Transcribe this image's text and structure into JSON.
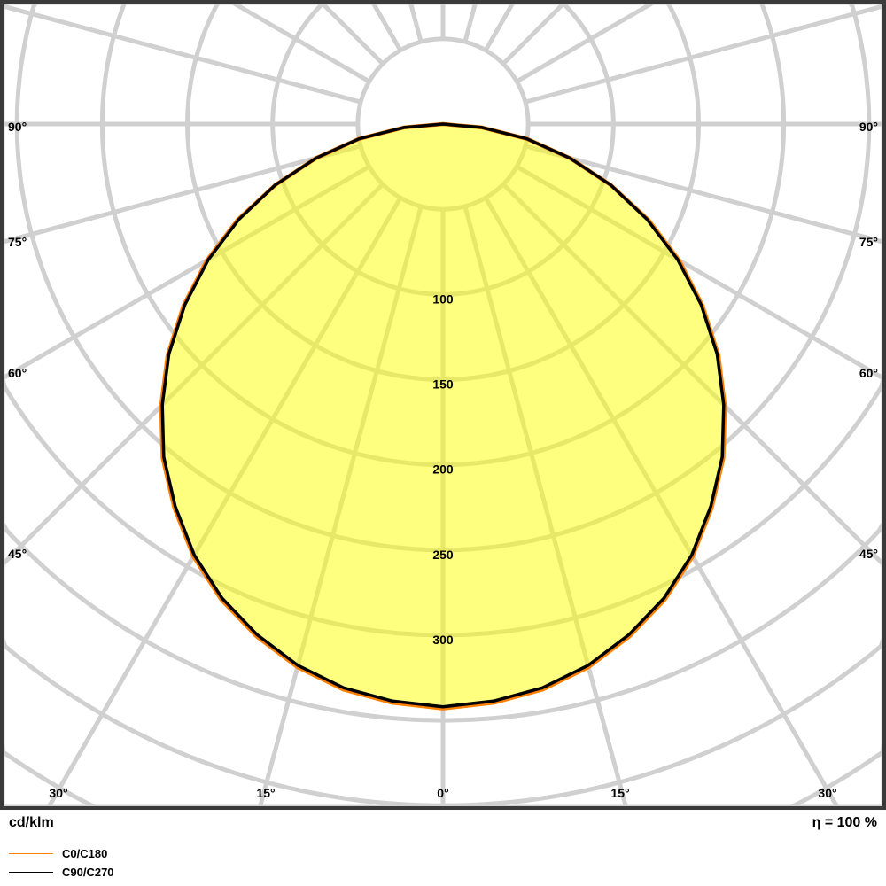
{
  "chart_data": {
    "type": "polar",
    "unit_label": "cd/klm",
    "efficiency_label": "η = 100 %",
    "radial_ticks": [
      100,
      150,
      200,
      250,
      300
    ],
    "radial_grid_step": 50,
    "angle_ticks": {
      "left": [
        "90°",
        "75°",
        "60°",
        "45°"
      ],
      "right": [
        "90°",
        "75°",
        "60°",
        "45°"
      ],
      "bottom": [
        "30°",
        "15°",
        "0°",
        "15°",
        "30°"
      ]
    },
    "angle_grid_step_deg": 15,
    "angles_deg": [
      0,
      5,
      10,
      15,
      20,
      25,
      30,
      35,
      40,
      45,
      50,
      55,
      60,
      65,
      70,
      75,
      80,
      85,
      90
    ],
    "series": [
      {
        "name": "C0/C180",
        "color": "#ff8000",
        "values": [
          343,
          341,
          337,
          330,
          320,
          308,
          293,
          275,
          256,
          234,
          211,
          186,
          160,
          133,
          105,
          77,
          50,
          23,
          0
        ]
      },
      {
        "name": "C90/C270",
        "color": "#000000",
        "values": [
          342,
          340,
          336,
          329,
          319,
          307,
          292,
          274,
          255,
          233,
          210,
          185,
          159,
          132,
          105,
          77,
          50,
          23,
          0
        ]
      }
    ],
    "fill_color": "#ffff80",
    "grid": true
  }
}
